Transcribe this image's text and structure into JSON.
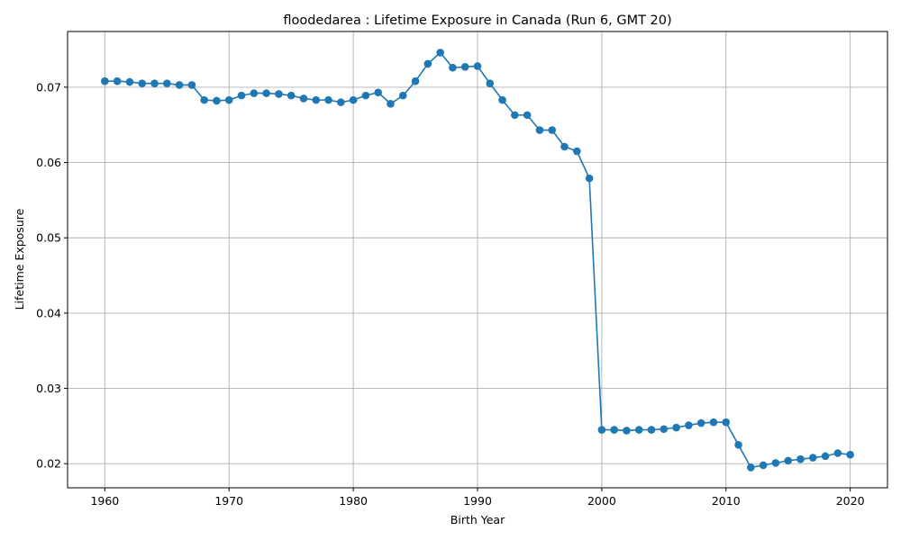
{
  "chart_data": {
    "type": "line",
    "title": "floodedarea : Lifetime Exposure in Canada (Run 6, GMT 20)",
    "xlabel": "Birth Year",
    "ylabel": "Lifetime Exposure",
    "xlim": [
      1957,
      2023
    ],
    "ylim": [
      0.0168,
      0.0774
    ],
    "xticks": [
      1960,
      1970,
      1980,
      1990,
      2000,
      2010,
      2020
    ],
    "xtick_labels": [
      "1960",
      "1970",
      "1980",
      "1990",
      "2000",
      "2010",
      "2020"
    ],
    "yticks": [
      0.02,
      0.03,
      0.04,
      0.05,
      0.06,
      0.07
    ],
    "ytick_labels": [
      "0.02",
      "0.03",
      "0.04",
      "0.05",
      "0.06",
      "0.07"
    ],
    "grid": true,
    "marker": "circle",
    "color": "#1f77b4",
    "x": [
      1960,
      1961,
      1962,
      1963,
      1964,
      1965,
      1966,
      1967,
      1968,
      1969,
      1970,
      1971,
      1972,
      1973,
      1974,
      1975,
      1976,
      1977,
      1978,
      1979,
      1980,
      1981,
      1982,
      1983,
      1984,
      1985,
      1986,
      1987,
      1988,
      1989,
      1990,
      1991,
      1992,
      1993,
      1994,
      1995,
      1996,
      1997,
      1998,
      1999,
      2000,
      2001,
      2002,
      2003,
      2004,
      2005,
      2006,
      2007,
      2008,
      2009,
      2010,
      2011,
      2012,
      2013,
      2014,
      2015,
      2016,
      2017,
      2018,
      2019,
      2020
    ],
    "y": [
      0.0708,
      0.0708,
      0.0707,
      0.0705,
      0.0705,
      0.0705,
      0.0703,
      0.0703,
      0.0683,
      0.0682,
      0.0683,
      0.0689,
      0.0692,
      0.0692,
      0.0691,
      0.0689,
      0.0685,
      0.0683,
      0.0683,
      0.068,
      0.0683,
      0.0689,
      0.0693,
      0.0678,
      0.0689,
      0.0708,
      0.0731,
      0.0746,
      0.0726,
      0.0727,
      0.0728,
      0.0705,
      0.0683,
      0.0663,
      0.0663,
      0.0643,
      0.0643,
      0.0621,
      0.0615,
      0.0579,
      0.0245,
      0.0245,
      0.0244,
      0.0245,
      0.0245,
      0.0246,
      0.0248,
      0.0251,
      0.0254,
      0.0255,
      0.0255,
      0.0225,
      0.0195,
      0.0198,
      0.0201,
      0.0204,
      0.0206,
      0.0208,
      0.021,
      0.0214,
      0.0212
    ]
  }
}
